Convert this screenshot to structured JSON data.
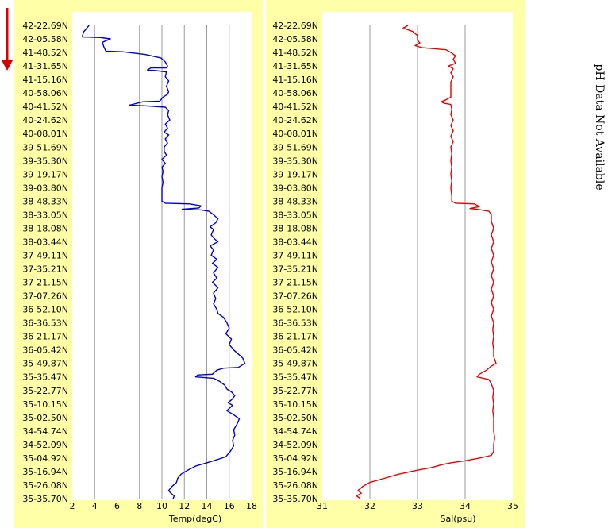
{
  "colors": {
    "panel_background": "#ffffa8",
    "plot_background": "#ffffff",
    "grid": "#9a9a9a",
    "temp_line": "#0000dd",
    "sal_line": "#ee0000",
    "direction_arrow": "#dd0000"
  },
  "direction_arrow_icon": "down-arrow-icon",
  "side_note": "pH Data Not Available",
  "chart_data": [
    {
      "type": "line",
      "title": "",
      "xlabel": "Temp(degC)",
      "ylabel": "",
      "xlim": [
        2,
        18
      ],
      "x_ticks": [
        "2",
        "4",
        "6",
        "8",
        "10",
        "12",
        "14",
        "16",
        "18"
      ],
      "y_ticks": [
        "42-22.69N",
        "42-05.58N",
        "41-48.52N",
        "41-31.65N",
        "41-15.16N",
        "40-58.06N",
        "40-41.52N",
        "40-24.62N",
        "40-08.01N",
        "39-51.69N",
        "39-35.30N",
        "39-19.17N",
        "39-03.80N",
        "38-48.33N",
        "38-33.05N",
        "38-18.08N",
        "38-03.44N",
        "37-49.11N",
        "37-35.21N",
        "37-21.15N",
        "37-07.26N",
        "36-52.10N",
        "36-36.53N",
        "36-21.17N",
        "36-05.42N",
        "35-49.87N",
        "35-35.47N",
        "35-22.77N",
        "35-10.15N",
        "35-02.50N",
        "34-54.74N",
        "34-52.09N",
        "35-04.92N",
        "35-16.94N",
        "35-26.08N",
        "35-35.70N"
      ],
      "ylim_index": [
        0,
        35
      ],
      "grid": true,
      "series": [
        {
          "points": [
            [
              3.5,
              0
            ],
            [
              3.0,
              0.5
            ],
            [
              2.9,
              0.85
            ],
            [
              4.5,
              0.9
            ],
            [
              5.4,
              1.0
            ],
            [
              4.7,
              1.25
            ],
            [
              4.8,
              1.55
            ],
            [
              5.0,
              1.9
            ],
            [
              6.5,
              1.95
            ],
            [
              8.5,
              2.15
            ],
            [
              9.9,
              2.4
            ],
            [
              10.3,
              2.7
            ],
            [
              10.5,
              3.0
            ],
            [
              10.4,
              3.15
            ],
            [
              9.0,
              3.15
            ],
            [
              8.7,
              3.3
            ],
            [
              9.5,
              3.35
            ],
            [
              10.4,
              3.45
            ],
            [
              10.3,
              3.8
            ],
            [
              10.6,
              4.1
            ],
            [
              10.4,
              4.5
            ],
            [
              10.6,
              4.9
            ],
            [
              10.5,
              5.1
            ],
            [
              10.1,
              5.3
            ],
            [
              9.8,
              5.6
            ],
            [
              8.3,
              5.65
            ],
            [
              7.1,
              5.9
            ],
            [
              8.5,
              5.95
            ],
            [
              10.3,
              6.05
            ],
            [
              10.6,
              6.3
            ],
            [
              10.5,
              6.6
            ],
            [
              10.7,
              7.0
            ],
            [
              10.3,
              7.3
            ],
            [
              10.5,
              7.6
            ],
            [
              10.2,
              7.9
            ],
            [
              10.6,
              8.1
            ],
            [
              10.3,
              8.4
            ],
            [
              10.5,
              8.7
            ],
            [
              10.2,
              9.0
            ],
            [
              10.2,
              9.3
            ],
            [
              10.4,
              9.6
            ],
            [
              10.0,
              9.9
            ],
            [
              10.3,
              10.2
            ],
            [
              10.0,
              10.5
            ],
            [
              10.1,
              10.8
            ],
            [
              10.0,
              11.2
            ],
            [
              10.1,
              11.6
            ],
            [
              10.0,
              12.0
            ],
            [
              10.0,
              12.5
            ],
            [
              10.0,
              13.0
            ],
            [
              10.3,
              13.15
            ],
            [
              12.5,
              13.2
            ],
            [
              13.5,
              13.35
            ],
            [
              13.3,
              13.5
            ],
            [
              11.8,
              13.6
            ],
            [
              13.5,
              13.65
            ],
            [
              14.2,
              13.75
            ],
            [
              14.6,
              14.0
            ],
            [
              15.0,
              14.3
            ],
            [
              14.8,
              14.6
            ],
            [
              14.3,
              14.9
            ],
            [
              14.6,
              15.1
            ],
            [
              14.4,
              15.5
            ],
            [
              14.7,
              15.8
            ],
            [
              15.0,
              16.0
            ],
            [
              14.3,
              16.3
            ],
            [
              14.6,
              16.6
            ],
            [
              14.4,
              17.0
            ],
            [
              14.9,
              17.3
            ],
            [
              14.5,
              17.6
            ],
            [
              15.0,
              17.9
            ],
            [
              14.6,
              18.3
            ],
            [
              14.9,
              18.7
            ],
            [
              14.5,
              19.0
            ],
            [
              15.0,
              19.4
            ],
            [
              14.6,
              19.8
            ],
            [
              14.8,
              20.2
            ],
            [
              14.6,
              20.6
            ],
            [
              14.9,
              21.0
            ],
            [
              15.0,
              21.3
            ],
            [
              15.5,
              21.6
            ],
            [
              15.8,
              22.0
            ],
            [
              16.0,
              22.4
            ],
            [
              15.7,
              22.8
            ],
            [
              16.2,
              23.2
            ],
            [
              16.0,
              23.6
            ],
            [
              16.4,
              24.0
            ],
            [
              16.8,
              24.3
            ],
            [
              17.2,
              24.6
            ],
            [
              17.4,
              25.0
            ],
            [
              16.8,
              25.3
            ],
            [
              15.5,
              25.35
            ],
            [
              14.9,
              25.5
            ],
            [
              14.5,
              25.8
            ],
            [
              13.2,
              25.85
            ],
            [
              13.0,
              26.0
            ],
            [
              14.6,
              26.1
            ],
            [
              15.1,
              26.3
            ],
            [
              15.6,
              26.6
            ],
            [
              15.8,
              26.9
            ],
            [
              16.2,
              27.1
            ],
            [
              16.5,
              27.4
            ],
            [
              16.2,
              27.7
            ],
            [
              15.9,
              27.9
            ],
            [
              16.3,
              28.1
            ],
            [
              15.8,
              28.5
            ],
            [
              16.4,
              28.8
            ],
            [
              16.9,
              29.1
            ],
            [
              16.7,
              29.5
            ],
            [
              16.4,
              29.9
            ],
            [
              16.5,
              30.3
            ],
            [
              16.3,
              30.7
            ],
            [
              16.4,
              31.1
            ],
            [
              16.1,
              31.5
            ],
            [
              15.7,
              31.9
            ],
            [
              15.0,
              32.1
            ],
            [
              14.0,
              32.35
            ],
            [
              13.0,
              32.6
            ],
            [
              12.3,
              32.9
            ],
            [
              11.7,
              33.2
            ],
            [
              11.4,
              33.5
            ],
            [
              11.3,
              33.8
            ],
            [
              10.9,
              34.1
            ],
            [
              10.6,
              34.4
            ],
            [
              10.8,
              34.6
            ],
            [
              11.1,
              34.8
            ],
            [
              11.0,
              35.0
            ]
          ]
        }
      ]
    },
    {
      "type": "line",
      "title": "",
      "xlabel": "Sal(psu)",
      "ylabel": "",
      "xlim": [
        31,
        35
      ],
      "x_ticks": [
        "31",
        "32",
        "33",
        "34",
        "35"
      ],
      "y_ticks": [
        "42-22.69N",
        "42-05.58N",
        "41-48.52N",
        "41-31.65N",
        "41-15.16N",
        "40-58.06N",
        "40-41.52N",
        "40-24.62N",
        "40-08.01N",
        "39-51.69N",
        "39-35.30N",
        "39-19.17N",
        "39-03.80N",
        "38-48.33N",
        "38-33.05N",
        "38-18.08N",
        "38-03.44N",
        "37-49.11N",
        "37-35.21N",
        "37-21.15N",
        "37-07.26N",
        "36-52.10N",
        "36-36.53N",
        "36-21.17N",
        "36-05.42N",
        "35-49.87N",
        "35-35.47N",
        "35-22.77N",
        "35-10.15N",
        "35-02.50N",
        "34-54.74N",
        "34-52.09N",
        "35-04.92N",
        "35-16.94N",
        "35-26.08N",
        "35-35.70N"
      ],
      "ylim_index": [
        0,
        35
      ],
      "grid": true,
      "series": [
        {
          "points": [
            [
              32.8,
              0
            ],
            [
              32.7,
              0.2
            ],
            [
              32.9,
              0.45
            ],
            [
              33.0,
              0.75
            ],
            [
              33.0,
              1.1
            ],
            [
              33.05,
              1.3
            ],
            [
              32.95,
              1.5
            ],
            [
              33.1,
              1.65
            ],
            [
              33.6,
              1.8
            ],
            [
              33.7,
              2.0
            ],
            [
              33.8,
              2.25
            ],
            [
              33.75,
              2.5
            ],
            [
              33.8,
              2.8
            ],
            [
              33.65,
              3.0
            ],
            [
              33.75,
              3.2
            ],
            [
              33.7,
              3.5
            ],
            [
              33.75,
              3.8
            ],
            [
              33.7,
              4.2
            ],
            [
              33.7,
              4.6
            ],
            [
              33.7,
              5.0
            ],
            [
              33.7,
              5.3
            ],
            [
              33.6,
              5.5
            ],
            [
              33.5,
              5.65
            ],
            [
              33.55,
              5.75
            ],
            [
              33.7,
              5.85
            ],
            [
              33.72,
              6.2
            ],
            [
              33.7,
              6.6
            ],
            [
              33.75,
              7.0
            ],
            [
              33.7,
              7.4
            ],
            [
              33.75,
              7.8
            ],
            [
              33.7,
              8.2
            ],
            [
              33.75,
              8.6
            ],
            [
              33.7,
              9.0
            ],
            [
              33.72,
              9.5
            ],
            [
              33.7,
              10.0
            ],
            [
              33.72,
              10.5
            ],
            [
              33.7,
              11.0
            ],
            [
              33.72,
              11.5
            ],
            [
              33.7,
              12.0
            ],
            [
              33.72,
              12.6
            ],
            [
              33.72,
              13.0
            ],
            [
              33.8,
              13.15
            ],
            [
              34.2,
              13.2
            ],
            [
              34.3,
              13.4
            ],
            [
              34.1,
              13.55
            ],
            [
              34.25,
              13.6
            ],
            [
              34.5,
              13.75
            ],
            [
              34.55,
              14.0
            ],
            [
              34.55,
              14.5
            ],
            [
              34.6,
              15.0
            ],
            [
              34.55,
              15.5
            ],
            [
              34.6,
              16.0
            ],
            [
              34.55,
              16.5
            ],
            [
              34.6,
              17.0
            ],
            [
              34.55,
              17.5
            ],
            [
              34.6,
              18.0
            ],
            [
              34.55,
              18.5
            ],
            [
              34.6,
              19.0
            ],
            [
              34.55,
              19.5
            ],
            [
              34.6,
              20.0
            ],
            [
              34.55,
              20.5
            ],
            [
              34.6,
              21.0
            ],
            [
              34.55,
              21.5
            ],
            [
              34.6,
              22.0
            ],
            [
              34.58,
              22.5
            ],
            [
              34.6,
              23.0
            ],
            [
              34.58,
              23.5
            ],
            [
              34.6,
              24.0
            ],
            [
              34.6,
              24.5
            ],
            [
              34.65,
              25.0
            ],
            [
              34.55,
              25.2
            ],
            [
              34.45,
              25.5
            ],
            [
              34.3,
              25.8
            ],
            [
              34.25,
              26.0
            ],
            [
              34.5,
              26.2
            ],
            [
              34.55,
              26.5
            ],
            [
              34.6,
              27.0
            ],
            [
              34.58,
              27.5
            ],
            [
              34.6,
              28.0
            ],
            [
              34.58,
              28.5
            ],
            [
              34.6,
              29.0
            ],
            [
              34.6,
              29.5
            ],
            [
              34.6,
              30.0
            ],
            [
              34.62,
              30.5
            ],
            [
              34.6,
              31.0
            ],
            [
              34.6,
              31.5
            ],
            [
              34.55,
              31.8
            ],
            [
              34.3,
              32.0
            ],
            [
              34.0,
              32.2
            ],
            [
              33.7,
              32.35
            ],
            [
              33.5,
              32.5
            ],
            [
              33.3,
              32.7
            ],
            [
              33.0,
              32.9
            ],
            [
              32.6,
              33.2
            ],
            [
              32.3,
              33.5
            ],
            [
              32.0,
              33.8
            ],
            [
              31.85,
              34.1
            ],
            [
              31.75,
              34.4
            ],
            [
              31.82,
              34.6
            ],
            [
              31.72,
              34.8
            ],
            [
              31.8,
              35.0
            ]
          ]
        }
      ]
    }
  ]
}
